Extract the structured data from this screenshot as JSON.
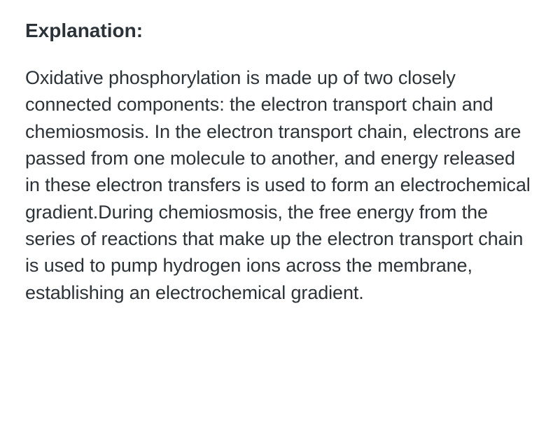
{
  "document": {
    "heading": "Explanation:",
    "body": "Oxidative phosphorylation is made up of two closely connected components: the electron transport chain and chemiosmosis. In the electron transport chain, electrons are passed from one molecule to another, and energy released in these electron transfers is used to form an electrochemical gradient.During chemiosmosis, the free energy from the series of reactions that make up the electron transport chain is used to pump hydrogen ions across the membrane, establishing an electrochemical gradient.",
    "text_color": "#2c3338",
    "background_color": "#ffffff",
    "heading_fontsize": 28,
    "heading_fontweight": 700,
    "body_fontsize": 27,
    "body_fontweight": 400,
    "body_lineheight": 1.42
  }
}
